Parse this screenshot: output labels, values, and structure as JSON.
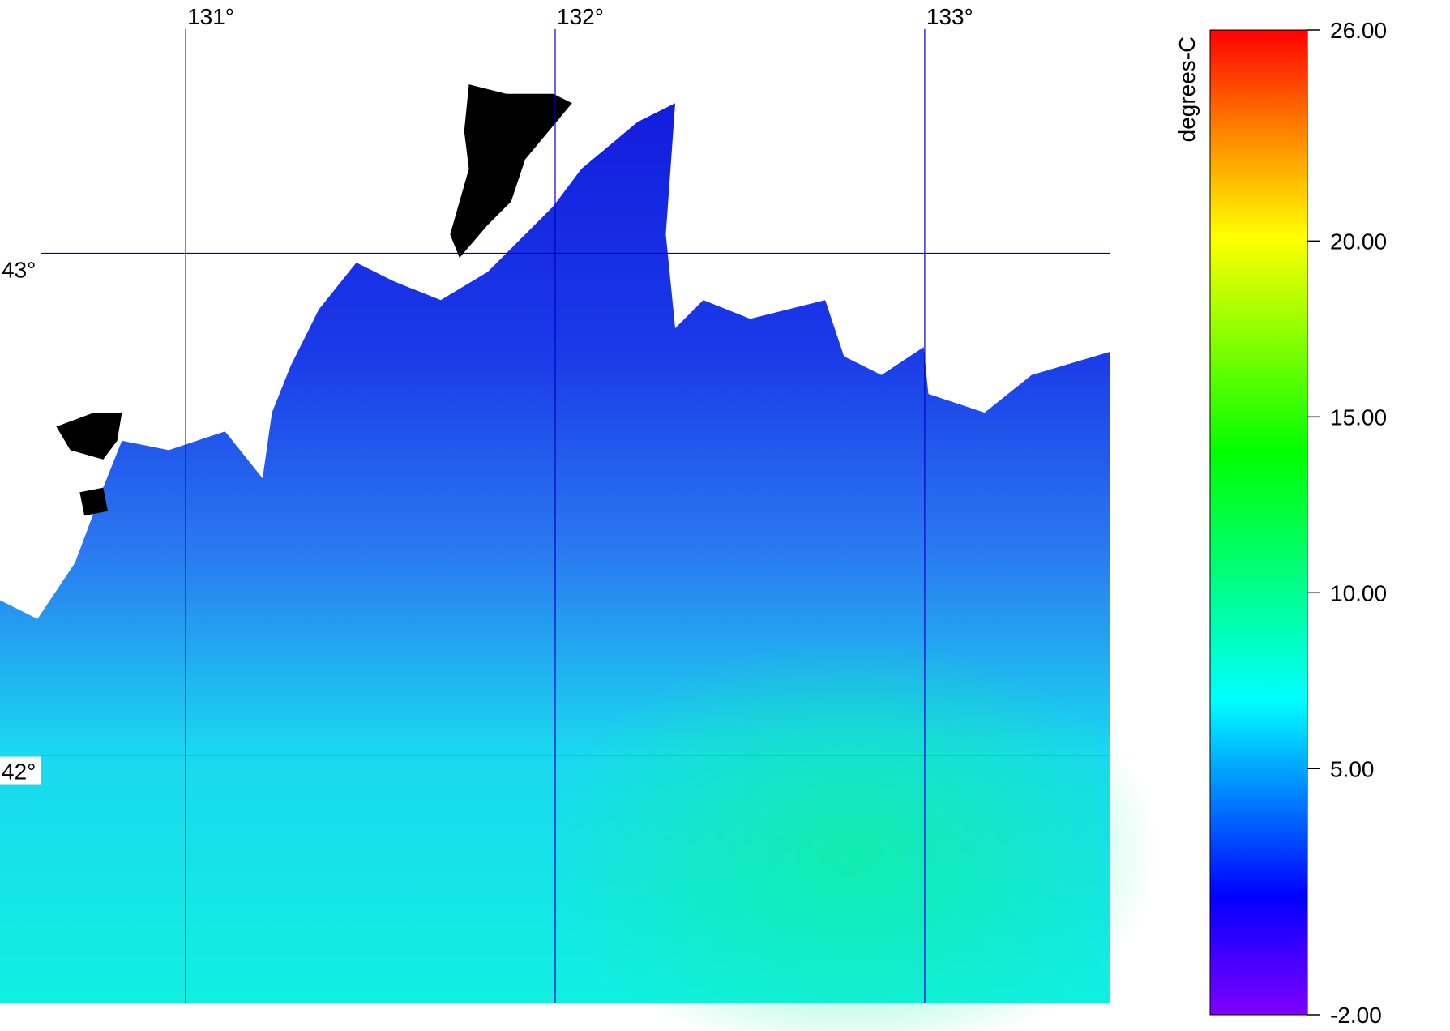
{
  "map": {
    "lon_range": [
      130.4975,
      133.5025
    ],
    "lat_range": [
      41.505,
      43.5047
    ],
    "lon_ticks": [
      {
        "value": 131,
        "label": "131°"
      },
      {
        "value": 132,
        "label": "132°"
      },
      {
        "value": 133,
        "label": "133°"
      }
    ],
    "lat_ticks": [
      {
        "value": 43,
        "label": "43°"
      },
      {
        "value": 42,
        "label": "42°"
      }
    ],
    "grid_color": "#0000c8"
  },
  "colorbar": {
    "label": "degrees-C",
    "lim": [
      -2,
      26
    ],
    "ticks": [
      {
        "value": -2,
        "label": "-2.00"
      },
      {
        "value": 5,
        "label": "5.00"
      },
      {
        "value": 10,
        "label": "10.00"
      },
      {
        "value": 15,
        "label": "15.00"
      },
      {
        "value": 20,
        "label": "20.00"
      },
      {
        "value": 26,
        "label": "26.00"
      }
    ]
  }
}
